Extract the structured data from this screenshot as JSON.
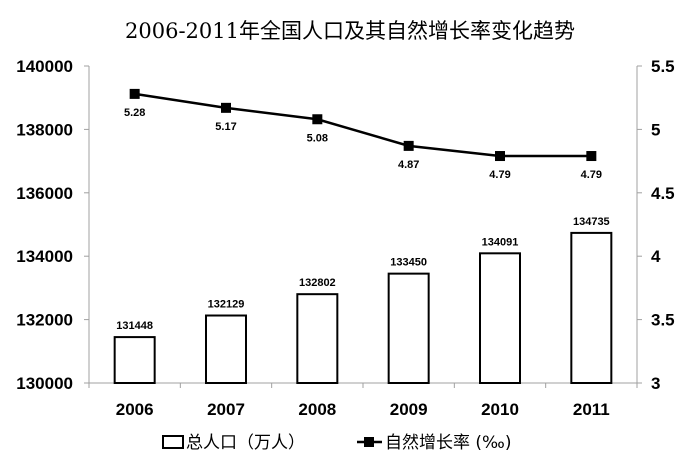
{
  "chart_data": {
    "type": "bar+line",
    "title": "2006-2011年全国人口及其自然增长率变化趋势",
    "categories": [
      "2006",
      "2007",
      "2008",
      "2009",
      "2010",
      "2011"
    ],
    "series": [
      {
        "name": "总人口（万人）",
        "type": "bar",
        "axis": "left",
        "values": [
          131448,
          132129,
          132802,
          133450,
          134091,
          134735
        ],
        "labels": [
          "131448",
          "132129",
          "132802",
          "133450",
          "134091",
          "134735"
        ]
      },
      {
        "name": "自然增长率 (‰)",
        "type": "line",
        "axis": "right",
        "values": [
          5.28,
          5.17,
          5.08,
          4.87,
          4.79,
          4.79
        ],
        "labels": [
          "5.28",
          "5.17",
          "5.08",
          "4.87",
          "4.79",
          "4.79"
        ]
      }
    ],
    "y_left": {
      "range": [
        130000,
        140000
      ],
      "ticks": [
        "130000",
        "132000",
        "134000",
        "136000",
        "138000",
        "140000"
      ]
    },
    "y_right": {
      "range": [
        3,
        5.5
      ],
      "ticks": [
        "3",
        "3.5",
        "4",
        "4.5",
        "5",
        "5.5"
      ]
    },
    "grid": false,
    "legend": "bottom",
    "colors": {
      "bar_fill": "#ffffff",
      "bar_stroke": "#000000",
      "line": "#000000",
      "axis": "#a0a0a0"
    }
  }
}
